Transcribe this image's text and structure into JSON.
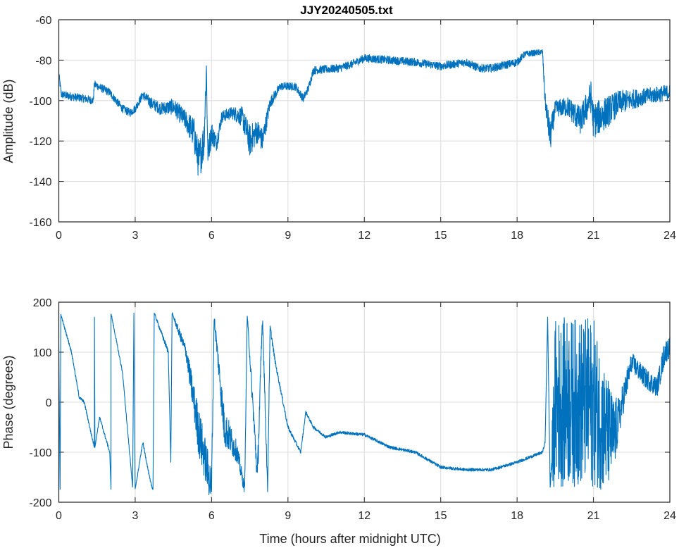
{
  "chart_data": [
    {
      "type": "line",
      "title": "JJY20240505.txt",
      "xlabel": "",
      "ylabel": "Amplitude (dB)",
      "xlim": [
        0,
        24
      ],
      "ylim": [
        -160,
        -60
      ],
      "xticks": [
        "0",
        "3",
        "6",
        "9",
        "12",
        "15",
        "18",
        "21",
        "24"
      ],
      "yticks": [
        "-60",
        "-80",
        "-100",
        "-120",
        "-140",
        "-160"
      ],
      "grid": true,
      "color": "#0072BD",
      "points_note_format": "[hour, value, noise_spread]",
      "points": [
        [
          0,
          -87,
          2
        ],
        [
          0.1,
          -97,
          2
        ],
        [
          0.5,
          -98,
          2
        ],
        [
          1,
          -99,
          2
        ],
        [
          1.35,
          -100,
          2
        ],
        [
          1.4,
          -92,
          2
        ],
        [
          2,
          -96,
          2
        ],
        [
          2.5,
          -104,
          2
        ],
        [
          2.8,
          -106,
          2
        ],
        [
          3,
          -104,
          2
        ],
        [
          3.3,
          -97,
          2
        ],
        [
          3.6,
          -101,
          3
        ],
        [
          4,
          -104,
          3
        ],
        [
          4.5,
          -103,
          4
        ],
        [
          5,
          -110,
          5
        ],
        [
          5.3,
          -116,
          8
        ],
        [
          5.5,
          -130,
          10
        ],
        [
          5.7,
          -120,
          10
        ],
        [
          5.8,
          -84,
          6
        ],
        [
          5.85,
          -126,
          6
        ],
        [
          6,
          -116,
          6
        ],
        [
          6.2,
          -121,
          4
        ],
        [
          6.4,
          -108,
          3
        ],
        [
          6.8,
          -106,
          3
        ],
        [
          7.2,
          -108,
          5
        ],
        [
          7.5,
          -120,
          8
        ],
        [
          7.8,
          -115,
          6
        ],
        [
          8,
          -120,
          6
        ],
        [
          8.3,
          -101,
          3
        ],
        [
          8.7,
          -93,
          2
        ],
        [
          9.3,
          -93,
          2
        ],
        [
          9.6,
          -99,
          2
        ],
        [
          9.8,
          -94,
          2
        ],
        [
          10,
          -85,
          2
        ],
        [
          11,
          -84,
          2
        ],
        [
          11.5,
          -82,
          2
        ],
        [
          12,
          -79,
          2
        ],
        [
          13,
          -80,
          2
        ],
        [
          14,
          -81,
          2
        ],
        [
          15,
          -83,
          2
        ],
        [
          16,
          -81,
          2
        ],
        [
          16.5,
          -84,
          2
        ],
        [
          17,
          -84,
          2
        ],
        [
          18,
          -81,
          2
        ],
        [
          18.3,
          -77,
          1.5
        ],
        [
          19,
          -76,
          1.5
        ],
        [
          19.1,
          -100,
          4
        ],
        [
          19.3,
          -118,
          8
        ],
        [
          19.5,
          -104,
          4
        ],
        [
          20,
          -103,
          5
        ],
        [
          20.5,
          -110,
          7
        ],
        [
          20.9,
          -98,
          8
        ],
        [
          21,
          -110,
          9
        ],
        [
          21.5,
          -106,
          8
        ],
        [
          22,
          -101,
          6
        ],
        [
          23,
          -98,
          4
        ],
        [
          24,
          -96,
          4
        ]
      ]
    },
    {
      "type": "line",
      "title": "",
      "xlabel": "Time (hours after midnight UTC)",
      "ylabel": "Phase (degrees)",
      "xlim": [
        0,
        24
      ],
      "ylim": [
        -200,
        200
      ],
      "xticks": [
        "0",
        "3",
        "6",
        "9",
        "12",
        "15",
        "18",
        "21",
        "24"
      ],
      "yticks": [
        "200",
        "100",
        "0",
        "-100",
        "-200"
      ],
      "grid": true,
      "color": "#0072BD",
      "points_note_format": "[hour, value, noise_spread]",
      "points": [
        [
          0,
          110,
          2
        ],
        [
          0.05,
          -175,
          2
        ],
        [
          0.08,
          175,
          2
        ],
        [
          0.5,
          100,
          3
        ],
        [
          0.8,
          10,
          3
        ],
        [
          1,
          0,
          3
        ],
        [
          1.3,
          -70,
          3
        ],
        [
          1.4,
          -90,
          3
        ],
        [
          1.4,
          170,
          0
        ],
        [
          1.42,
          -90,
          0
        ],
        [
          1.6,
          -30,
          3
        ],
        [
          2,
          -100,
          3
        ],
        [
          2.05,
          -175,
          2
        ],
        [
          2.05,
          178,
          2
        ],
        [
          2.5,
          60,
          3
        ],
        [
          2.9,
          -170,
          3
        ],
        [
          2.95,
          178,
          0
        ],
        [
          3,
          -175,
          2
        ],
        [
          3.3,
          -80,
          3
        ],
        [
          3.6,
          -160,
          3
        ],
        [
          3.7,
          -175,
          2
        ],
        [
          3.75,
          178,
          2
        ],
        [
          4.3,
          100,
          6
        ],
        [
          4.4,
          -120,
          0
        ],
        [
          4.45,
          178,
          2
        ],
        [
          5,
          100,
          15
        ],
        [
          5.5,
          -60,
          50
        ],
        [
          6,
          -170,
          40
        ],
        [
          6.1,
          170,
          10
        ],
        [
          6.5,
          -50,
          40
        ],
        [
          7,
          -100,
          20
        ],
        [
          7.3,
          -175,
          10
        ],
        [
          7.4,
          175,
          5
        ],
        [
          7.8,
          -150,
          30
        ],
        [
          8,
          175,
          20
        ],
        [
          8.2,
          -175,
          10
        ],
        [
          8.3,
          150,
          8
        ],
        [
          8.5,
          80,
          5
        ],
        [
          9,
          -50,
          4
        ],
        [
          9.5,
          -100,
          3
        ],
        [
          9.7,
          -20,
          3
        ],
        [
          10,
          -50,
          3
        ],
        [
          10.5,
          -70,
          3
        ],
        [
          11,
          -60,
          3
        ],
        [
          12,
          -65,
          3
        ],
        [
          13,
          -90,
          3
        ],
        [
          14,
          -100,
          3
        ],
        [
          15,
          -130,
          3
        ],
        [
          16,
          -135,
          3
        ],
        [
          17,
          -135,
          3
        ],
        [
          18,
          -120,
          3
        ],
        [
          19,
          -100,
          3
        ],
        [
          19.1,
          -80,
          3
        ],
        [
          19.2,
          170,
          0
        ],
        [
          19.3,
          -170,
          0
        ],
        [
          19.5,
          0,
          170
        ],
        [
          20,
          0,
          170
        ],
        [
          20.5,
          0,
          170
        ],
        [
          21,
          0,
          170
        ],
        [
          21.5,
          -60,
          120
        ],
        [
          21.8,
          -70,
          80
        ],
        [
          22,
          -30,
          40
        ],
        [
          22.5,
          80,
          20
        ],
        [
          23,
          50,
          20
        ],
        [
          23.5,
          30,
          20
        ],
        [
          23.8,
          100,
          25
        ],
        [
          24,
          110,
          20
        ]
      ]
    }
  ]
}
